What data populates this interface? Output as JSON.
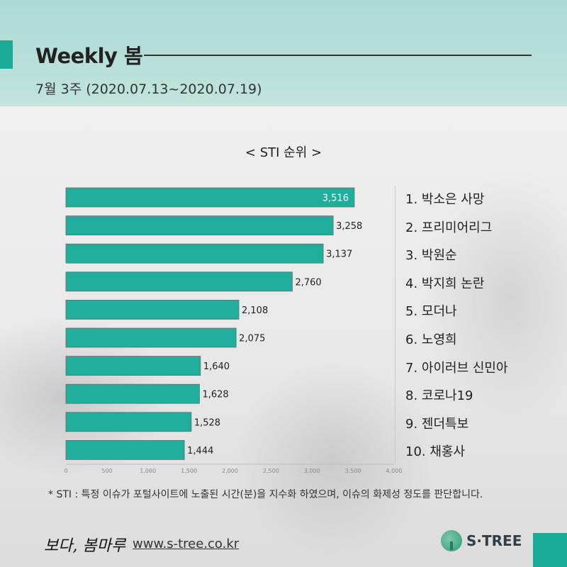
{
  "header": {
    "title": "Weekly 봄",
    "subtitle": "7월 3주 (2020.07.13~2020.07.19)"
  },
  "chart_title": "< STI 순위 >",
  "chart_data": {
    "type": "bar",
    "orientation": "horizontal",
    "categories": [
      "1",
      "2",
      "3",
      "4",
      "5",
      "6",
      "7",
      "8",
      "9",
      "10"
    ],
    "values": [
      3516,
      3258,
      3137,
      2760,
      2108,
      2075,
      1640,
      1628,
      1528,
      1444
    ],
    "value_labels": [
      "3,516",
      "3,258",
      "3,137",
      "2,760",
      "2,108",
      "2,075",
      "1,640",
      "1,628",
      "1,528",
      "1,444"
    ],
    "xlim": [
      0,
      4000
    ],
    "x_ticks": [
      "0",
      "500",
      "1,000",
      "1,500",
      "2,000",
      "2,500",
      "3,000",
      "3,500",
      "4,000"
    ],
    "bar_color": "#1fae9b",
    "grid": false
  },
  "ranking": [
    "1. 박소은 사망",
    "2. 프리미어리그",
    "3. 박원순",
    "4. 박지희 논란",
    "5. 모더나",
    "6. 노영희",
    "7. 아이러브 신민아",
    "8. 코로나19",
    "9. 젠더특보",
    "10. 채홍사"
  ],
  "footnote": "* STI : 특정 이슈가 포털사이트에 노출된 시간(분)을 지수화 하였으며, 이슈의 화제성 정도를 판단합니다.",
  "footer": {
    "signature": "보다, 봄마루",
    "website": "www.s-tree.co.kr",
    "brand": "S·TREE"
  },
  "colors": {
    "accent": "#1aaa98",
    "header_bg": "#a8d9d2"
  }
}
